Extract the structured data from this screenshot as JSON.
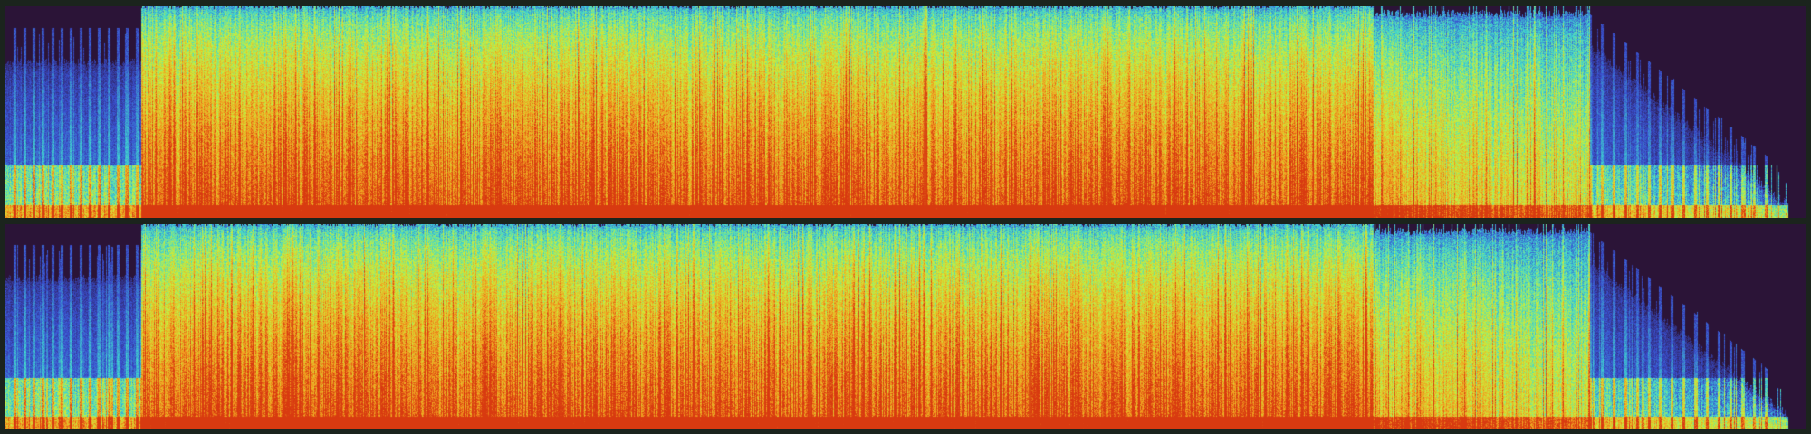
{
  "view": {
    "type": "stereo-spectrogram",
    "channels": [
      {
        "id": "channel-1"
      },
      {
        "id": "channel-2"
      }
    ],
    "colors": {
      "background": "#1b241d",
      "silence": "#2b1437",
      "low": "#3a4fd0",
      "mid": "#3fd7d0",
      "mid_high": "#c8f03c",
      "high": "#f3a020",
      "peak": "#d83a10"
    }
  }
}
